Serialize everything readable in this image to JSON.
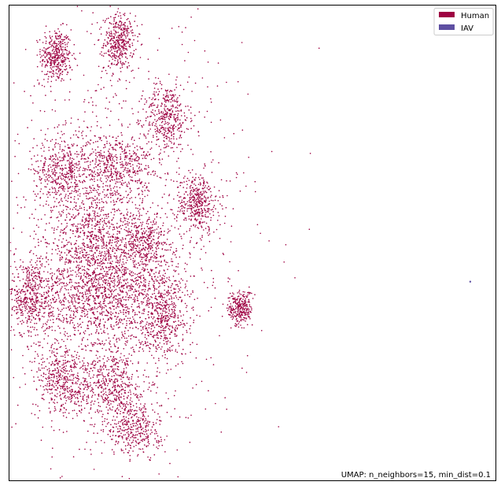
{
  "chart_data": {
    "type": "scatter",
    "title": "",
    "xlabel": "",
    "ylabel": "",
    "xlim": [
      -2.5,
      20.0
    ],
    "ylim": [
      -1.0,
      20.5
    ],
    "grid": false,
    "ticks": false,
    "legend": {
      "placement": "top-right",
      "entries": [
        {
          "name": "Human",
          "color": "#9e0142"
        },
        {
          "name": "IAV",
          "color": "#5e4fa2"
        }
      ]
    },
    "annotation": "UMAP: n_neighbors=15, min_dist=0.1",
    "series": [
      {
        "name": "Human",
        "color": "#9e0142",
        "clusters": [
          {
            "cx": -0.3,
            "cy": 18.2,
            "sx": 0.35,
            "sy": 0.6,
            "n": 380
          },
          {
            "cx": 2.6,
            "cy": 18.8,
            "sx": 0.35,
            "sy": 0.6,
            "n": 380
          },
          {
            "cx": 4.8,
            "cy": 15.4,
            "sx": 0.5,
            "sy": 0.75,
            "n": 380
          },
          {
            "cx": 0.0,
            "cy": 13.0,
            "sx": 0.65,
            "sy": 0.9,
            "n": 460
          },
          {
            "cx": 2.5,
            "cy": 13.3,
            "sx": 0.8,
            "sy": 0.7,
            "n": 460
          },
          {
            "cx": 6.2,
            "cy": 11.5,
            "sx": 0.5,
            "sy": 0.65,
            "n": 400
          },
          {
            "cx": 1.5,
            "cy": 10.0,
            "sx": 1.1,
            "sy": 1.1,
            "n": 700
          },
          {
            "cx": 3.8,
            "cy": 9.7,
            "sx": 0.5,
            "sy": 0.7,
            "n": 330
          },
          {
            "cx": 1.8,
            "cy": 7.3,
            "sx": 1.6,
            "sy": 1.2,
            "n": 1300
          },
          {
            "cx": -1.5,
            "cy": 7.3,
            "sx": 0.5,
            "sy": 0.9,
            "n": 450
          },
          {
            "cx": 4.6,
            "cy": 6.5,
            "sx": 0.6,
            "sy": 1.0,
            "n": 450
          },
          {
            "cx": 8.2,
            "cy": 6.8,
            "sx": 0.28,
            "sy": 0.4,
            "n": 280
          },
          {
            "cx": 0.1,
            "cy": 3.5,
            "sx": 0.7,
            "sy": 0.8,
            "n": 480
          },
          {
            "cx": 2.3,
            "cy": 3.3,
            "sx": 0.6,
            "sy": 0.8,
            "n": 420
          },
          {
            "cx": 3.3,
            "cy": 1.5,
            "sx": 0.6,
            "sy": 0.7,
            "n": 380
          },
          {
            "cx": 2.8,
            "cy": 10.0,
            "sx": 2.8,
            "sy": 5.0,
            "n": 1200
          }
        ],
        "outliers": [
          {
            "x": 1.3,
            "y": 19.2
          },
          {
            "x": 1.7,
            "y": 19.4
          },
          {
            "x": 3.7,
            "y": 16.6
          },
          {
            "x": 0.1,
            "y": 16.2
          },
          {
            "x": 7.7,
            "y": 8.9
          },
          {
            "x": 8.1,
            "y": 8.5
          }
        ]
      },
      {
        "name": "IAV",
        "color": "#5e4fa2",
        "points": [
          {
            "x": 18.8,
            "y": 8.0
          }
        ]
      }
    ]
  }
}
